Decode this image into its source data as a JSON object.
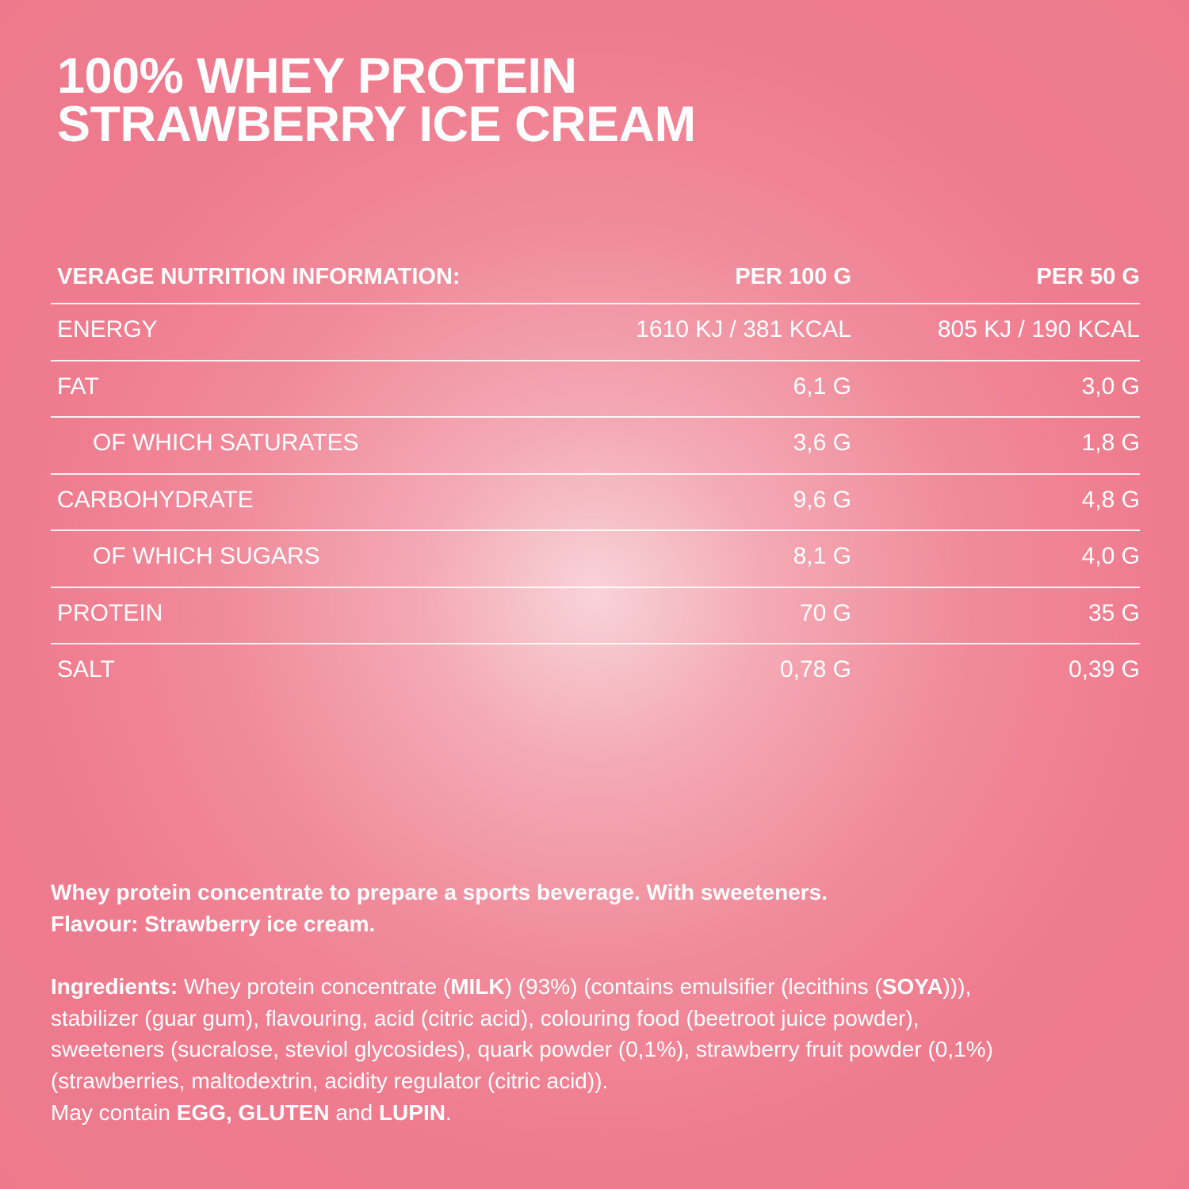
{
  "colors": {
    "background": "#ef7b8e",
    "center_glow": "#f8d3d8",
    "text": "#ffffff"
  },
  "title": {
    "line1": "100% WHEY PROTEIN",
    "line2": "STRAWBERRY ICE CREAM"
  },
  "table": {
    "headers": [
      "VERAGE NUTRITION INFORMATION:",
      "PER 100 G",
      "PER 50 G"
    ],
    "rows": [
      {
        "label": "ENERGY",
        "per100": "1610 KJ / 381 KCAL",
        "per50": "805 KJ / 190 KCAL",
        "indent": false
      },
      {
        "label": "FAT",
        "per100": "6,1 G",
        "per50": "3,0 G",
        "indent": false
      },
      {
        "label": "OF WHICH SATURATES",
        "per100": "3,6 G",
        "per50": "1,8 G",
        "indent": true
      },
      {
        "label": "CARBOHYDRATE",
        "per100": "9,6 G",
        "per50": "4,8 G",
        "indent": false
      },
      {
        "label": "OF WHICH SUGARS",
        "per100": "8,1 G",
        "per50": "4,0 G",
        "indent": true
      },
      {
        "label": "PROTEIN",
        "per100": "70 G",
        "per50": "35 G",
        "indent": false
      },
      {
        "label": "SALT",
        "per100": "0,78 G",
        "per50": "0,39 G",
        "indent": false
      }
    ]
  },
  "description": {
    "line1": "Whey protein concentrate to prepare a sports beverage. With sweeteners.",
    "line2": "Flavour: Strawberry ice cream."
  },
  "ingredients": {
    "lines": [
      [
        {
          "t": "Ingredients:",
          "b": true
        },
        {
          "t": " Whey protein concentrate (",
          "b": false
        },
        {
          "t": "MILK",
          "b": true
        },
        {
          "t": ") (93%) (contains emulsifier (lecithins (",
          "b": false
        },
        {
          "t": "SOYA",
          "b": true
        },
        {
          "t": "))),",
          "b": false
        }
      ],
      [
        {
          "t": "stabilizer (guar gum), flavouring, acid (citric acid), colouring food (beetroot juice powder),",
          "b": false
        }
      ],
      [
        {
          "t": "sweeteners (sucralose, steviol glycosides), quark powder (0,1%), strawberry fruit powder (0,1%)",
          "b": false
        }
      ],
      [
        {
          "t": "(strawberries, maltodextrin, acidity regulator (citric acid)).",
          "b": false
        }
      ],
      [
        {
          "t": "May contain ",
          "b": false
        },
        {
          "t": "EGG, GLUTEN",
          "b": true
        },
        {
          "t": " and ",
          "b": false
        },
        {
          "t": "LUPIN",
          "b": true
        },
        {
          "t": ".",
          "b": false
        }
      ]
    ]
  }
}
